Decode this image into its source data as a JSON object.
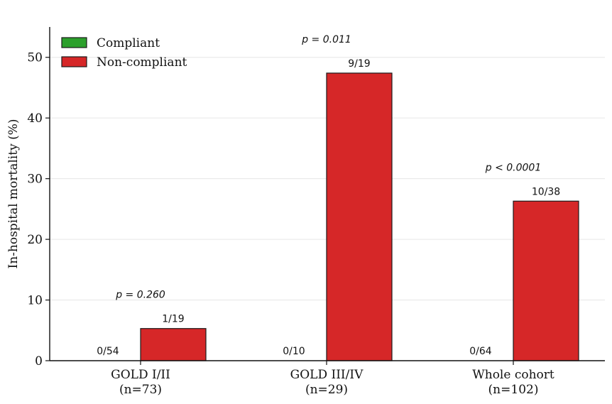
{
  "chart_data": {
    "type": "bar",
    "ylabel": "In-hospital mortality (%)",
    "ylim": [
      0,
      55
    ],
    "yticks": [
      0,
      10,
      20,
      30,
      40,
      50
    ],
    "grid": "horizontal",
    "legend_position": "top-left",
    "categories": [
      {
        "line1": "GOLD I/II",
        "line2": "(n=73)"
      },
      {
        "line1": "GOLD III/IV",
        "line2": "(n=29)"
      },
      {
        "line1": "Whole cohort",
        "line2": "(n=102)"
      }
    ],
    "series": [
      {
        "name": "Compliant",
        "color": "#2ca02c",
        "values": [
          0,
          0,
          0
        ],
        "labels": [
          "0/54",
          "0/10",
          "0/64"
        ]
      },
      {
        "name": "Non-compliant",
        "color": "#d62728",
        "values": [
          5.3,
          47.4,
          26.3
        ],
        "labels": [
          "1/19",
          "9/19",
          "10/38"
        ]
      }
    ],
    "p_values": [
      "p = 0.260",
      "p = 0.011",
      "p < 0.0001"
    ]
  }
}
